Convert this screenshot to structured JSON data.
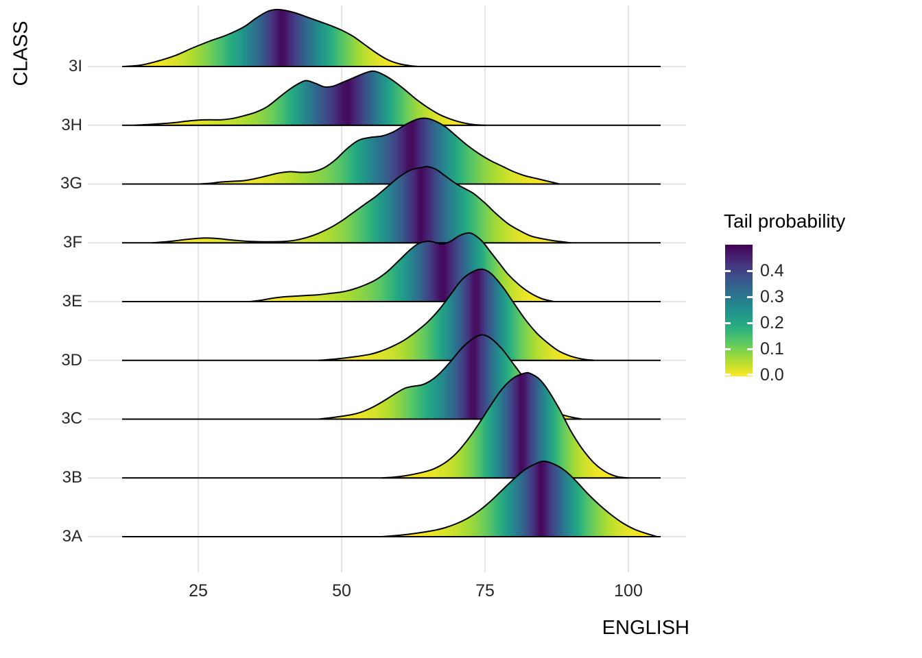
{
  "y_axis": {
    "title": "CLASS",
    "categories": [
      "3I",
      "3H",
      "3G",
      "3F",
      "3E",
      "3D",
      "3C",
      "3B",
      "3A"
    ]
  },
  "x_axis": {
    "title": "ENGLISH",
    "tick_labels": [
      "25",
      "50",
      "75",
      "100"
    ],
    "tick_values": [
      25,
      50,
      75,
      100
    ]
  },
  "legend": {
    "title": "Tail probability",
    "tick_labels": [
      "0.4",
      "0.3",
      "0.2",
      "0.1",
      "0.0"
    ],
    "tick_values": [
      0.4,
      0.3,
      0.2,
      0.1,
      0.0
    ],
    "range_low": 0.0,
    "range_high": 0.5
  },
  "colors": {
    "viridis_anchors": [
      "#440154",
      "#472D7B",
      "#3B528B",
      "#2C728E",
      "#21918C",
      "#27AD81",
      "#5EC962",
      "#AADC32",
      "#FDE725"
    ],
    "gridline": "#E5E5E5",
    "ridge_outline": "#000000",
    "background": "#FFFFFF",
    "axis_text": "#262626",
    "title_text": "#000000"
  },
  "chart_data": {
    "type": "ridgeline-density",
    "title": "",
    "xlabel": "ENGLISH",
    "ylabel": "CLASS",
    "x_domain": [
      10,
      106
    ],
    "x_ticks": [
      25,
      50,
      75,
      100
    ],
    "fill_mapping": "tail probability = min(CDF, 1-CDF), colored with viridis (0 = yellow, 0.5 = dark purple)",
    "legend_title": "Tail probability",
    "categories": [
      "3I",
      "3H",
      "3G",
      "3F",
      "3E",
      "3D",
      "3C",
      "3B",
      "3A"
    ],
    "series": [
      {
        "name": "3I",
        "peak_x": 38.5,
        "density_xh": [
          [
            12,
            0
          ],
          [
            15,
            2
          ],
          [
            18,
            8
          ],
          [
            21,
            16
          ],
          [
            24,
            27
          ],
          [
            27,
            37
          ],
          [
            30,
            46
          ],
          [
            33,
            58
          ],
          [
            35,
            70
          ],
          [
            37,
            80
          ],
          [
            38.5,
            83
          ],
          [
            40,
            82
          ],
          [
            42,
            78
          ],
          [
            44,
            72
          ],
          [
            46,
            66
          ],
          [
            48,
            60
          ],
          [
            50,
            53
          ],
          [
            52,
            44
          ],
          [
            54,
            32
          ],
          [
            56,
            20
          ],
          [
            58,
            10
          ],
          [
            60,
            4
          ],
          [
            62,
            1
          ],
          [
            63.5,
            0
          ]
        ]
      },
      {
        "name": "3H",
        "peak_x": 55.5,
        "density_xh": [
          [
            14,
            0
          ],
          [
            16,
            1
          ],
          [
            18,
            2
          ],
          [
            21,
            4
          ],
          [
            23,
            6
          ],
          [
            25,
            7.5
          ],
          [
            27,
            8
          ],
          [
            29,
            8
          ],
          [
            31,
            10
          ],
          [
            33,
            14
          ],
          [
            35,
            19
          ],
          [
            37,
            27
          ],
          [
            39,
            40
          ],
          [
            41,
            53
          ],
          [
            43,
            63
          ],
          [
            44,
            65
          ],
          [
            45.5,
            61
          ],
          [
            47,
            56
          ],
          [
            48.5,
            57
          ],
          [
            50,
            62
          ],
          [
            52,
            69
          ],
          [
            54,
            76
          ],
          [
            55.5,
            79
          ],
          [
            57,
            75
          ],
          [
            59,
            65
          ],
          [
            61,
            52
          ],
          [
            63,
            38
          ],
          [
            65,
            26
          ],
          [
            67,
            16
          ],
          [
            69,
            9
          ],
          [
            71,
            4
          ],
          [
            73,
            1
          ],
          [
            75,
            0
          ]
        ]
      },
      {
        "name": "3G",
        "peak_x": 64.5,
        "density_xh": [
          [
            25,
            0
          ],
          [
            27,
            1
          ],
          [
            29,
            3
          ],
          [
            31,
            4
          ],
          [
            33,
            5
          ],
          [
            35,
            8
          ],
          [
            37,
            12
          ],
          [
            39,
            16
          ],
          [
            41,
            18
          ],
          [
            43,
            17
          ],
          [
            45,
            18
          ],
          [
            47,
            24
          ],
          [
            49,
            36
          ],
          [
            51,
            52
          ],
          [
            53,
            64
          ],
          [
            55,
            68
          ],
          [
            57,
            70
          ],
          [
            59,
            76
          ],
          [
            61,
            86
          ],
          [
            63,
            94
          ],
          [
            64.5,
            96
          ],
          [
            66,
            93
          ],
          [
            68,
            84
          ],
          [
            70,
            70
          ],
          [
            72,
            56
          ],
          [
            74,
            44
          ],
          [
            76,
            34
          ],
          [
            78,
            26
          ],
          [
            80,
            18
          ],
          [
            82,
            12
          ],
          [
            84,
            8
          ],
          [
            86,
            4
          ],
          [
            88,
            0
          ]
        ]
      },
      {
        "name": "3F",
        "peak_x": 65,
        "density_xh": [
          [
            17,
            0
          ],
          [
            20,
            2
          ],
          [
            23,
            5
          ],
          [
            26,
            7
          ],
          [
            28,
            6.5
          ],
          [
            31,
            4
          ],
          [
            34,
            2
          ],
          [
            37,
            1.5
          ],
          [
            40,
            2
          ],
          [
            42,
            4
          ],
          [
            44,
            8
          ],
          [
            46,
            14
          ],
          [
            48,
            22
          ],
          [
            50,
            32
          ],
          [
            52,
            44
          ],
          [
            54,
            56
          ],
          [
            56,
            68
          ],
          [
            58,
            82
          ],
          [
            60,
            96
          ],
          [
            62,
            106
          ],
          [
            64,
            110
          ],
          [
            65,
            111
          ],
          [
            66.5,
            107
          ],
          [
            68,
            98
          ],
          [
            70,
            86
          ],
          [
            71.5,
            79
          ],
          [
            73,
            72
          ],
          [
            75,
            58
          ],
          [
            77,
            42
          ],
          [
            79,
            28
          ],
          [
            81,
            18
          ],
          [
            83,
            10
          ],
          [
            85,
            6
          ],
          [
            87,
            3
          ],
          [
            90,
            0
          ]
        ]
      },
      {
        "name": "3E",
        "peak_x": 72,
        "density_xh": [
          [
            34,
            0
          ],
          [
            36,
            2
          ],
          [
            38,
            5
          ],
          [
            40,
            7
          ],
          [
            42,
            8
          ],
          [
            44,
            9
          ],
          [
            46,
            10
          ],
          [
            48,
            12
          ],
          [
            50,
            14
          ],
          [
            52,
            18
          ],
          [
            54,
            24
          ],
          [
            56,
            32
          ],
          [
            58,
            44
          ],
          [
            60,
            60
          ],
          [
            62,
            76
          ],
          [
            63.5,
            85
          ],
          [
            65,
            88
          ],
          [
            66,
            87
          ],
          [
            67.5,
            84
          ],
          [
            69,
            88
          ],
          [
            70.5,
            96
          ],
          [
            72,
            100
          ],
          [
            73,
            98
          ],
          [
            74.5,
            88
          ],
          [
            76,
            72
          ],
          [
            77.5,
            56
          ],
          [
            79,
            40
          ],
          [
            81,
            24
          ],
          [
            83,
            12
          ],
          [
            85,
            4
          ],
          [
            87,
            0
          ]
        ]
      },
      {
        "name": "3D",
        "peak_x": 74.5,
        "density_xh": [
          [
            46,
            0
          ],
          [
            49,
            2
          ],
          [
            52,
            5
          ],
          [
            55,
            9
          ],
          [
            57,
            14
          ],
          [
            59,
            21
          ],
          [
            61,
            30
          ],
          [
            63,
            42
          ],
          [
            65,
            56
          ],
          [
            67,
            74
          ],
          [
            69,
            96
          ],
          [
            71,
            118
          ],
          [
            73,
            130
          ],
          [
            74.5,
            133
          ],
          [
            76,
            127
          ],
          [
            78,
            108
          ],
          [
            80,
            84
          ],
          [
            82,
            60
          ],
          [
            84,
            40
          ],
          [
            86,
            25
          ],
          [
            88,
            13
          ],
          [
            90,
            6
          ],
          [
            92,
            2
          ],
          [
            94,
            0
          ]
        ]
      },
      {
        "name": "3C",
        "peak_x": 74.5,
        "density_xh": [
          [
            46,
            0
          ],
          [
            49,
            3
          ],
          [
            52,
            7
          ],
          [
            54,
            12
          ],
          [
            56,
            20
          ],
          [
            58,
            30
          ],
          [
            59.5,
            38
          ],
          [
            61,
            45
          ],
          [
            62.5,
            48
          ],
          [
            64,
            50
          ],
          [
            65.5,
            56
          ],
          [
            67,
            66
          ],
          [
            69,
            84
          ],
          [
            71,
            104
          ],
          [
            73,
            118
          ],
          [
            74.5,
            123
          ],
          [
            76,
            118
          ],
          [
            78,
            102
          ],
          [
            80,
            80
          ],
          [
            82,
            58
          ],
          [
            84,
            38
          ],
          [
            85,
            28
          ],
          [
            86,
            20
          ],
          [
            87,
            14
          ],
          [
            88,
            8
          ],
          [
            90,
            3
          ],
          [
            92,
            0
          ]
        ]
      },
      {
        "name": "3B",
        "peak_x": 82,
        "density_xh": [
          [
            57,
            0
          ],
          [
            59,
            1
          ],
          [
            61,
            3
          ],
          [
            64,
            8
          ],
          [
            66,
            13
          ],
          [
            68,
            22
          ],
          [
            70,
            36
          ],
          [
            72,
            56
          ],
          [
            74,
            80
          ],
          [
            76,
            106
          ],
          [
            78,
            130
          ],
          [
            80,
            146
          ],
          [
            82,
            153
          ],
          [
            83,
            152
          ],
          [
            84.5,
            144
          ],
          [
            86,
            128
          ],
          [
            88,
            100
          ],
          [
            90,
            68
          ],
          [
            92,
            42
          ],
          [
            94,
            22
          ],
          [
            96,
            9
          ],
          [
            98,
            2
          ],
          [
            100,
            0
          ]
        ]
      },
      {
        "name": "3A",
        "peak_x": 85.3,
        "density_xh": [
          [
            57,
            0
          ],
          [
            60,
            2
          ],
          [
            63,
            5
          ],
          [
            66,
            9
          ],
          [
            68,
            13
          ],
          [
            70,
            19
          ],
          [
            72,
            27
          ],
          [
            74,
            38
          ],
          [
            76,
            52
          ],
          [
            78,
            68
          ],
          [
            80,
            84
          ],
          [
            82,
            98
          ],
          [
            84,
            107
          ],
          [
            85.3,
            110
          ],
          [
            87,
            106
          ],
          [
            89,
            96
          ],
          [
            91,
            80
          ],
          [
            93,
            62
          ],
          [
            95,
            46
          ],
          [
            97,
            32
          ],
          [
            99,
            20
          ],
          [
            101,
            11
          ],
          [
            103,
            5
          ],
          [
            105,
            0
          ]
        ]
      }
    ]
  }
}
